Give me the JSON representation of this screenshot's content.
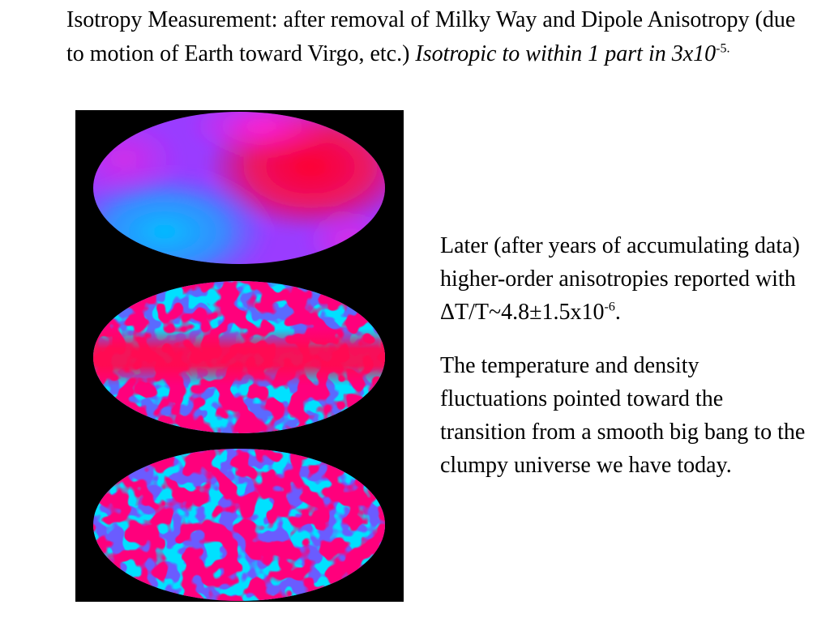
{
  "slide": {
    "title_main": "Isotropy Measurement: after removal of Milky Way and Dipole Anisotropy (due to motion of Earth toward Virgo, etc.) ",
    "title_italic": "Isotropic to within 1 part in 3x10",
    "title_exp": "-5.",
    "note1_main": "Later (after years of accumulating data) higher-order anisotropies reported with ΔT/T~4.8±1.5x10",
    "note1_exp": "-6",
    "note1_end": ".",
    "note2": "The temperature and density fluctuations pointed toward the transition from a smooth big bang to the clumpy universe we have today."
  },
  "figure": {
    "panels": [
      "dipole-anisotropy-map",
      "milky-way-anisotropy-map",
      "cmb-fluctuations-map"
    ],
    "colors": {
      "background": "#000000",
      "cold": "#00b4ff",
      "mid": "#8a40ff",
      "warm": "#ff2ab0",
      "hot": "#ff0030"
    }
  }
}
